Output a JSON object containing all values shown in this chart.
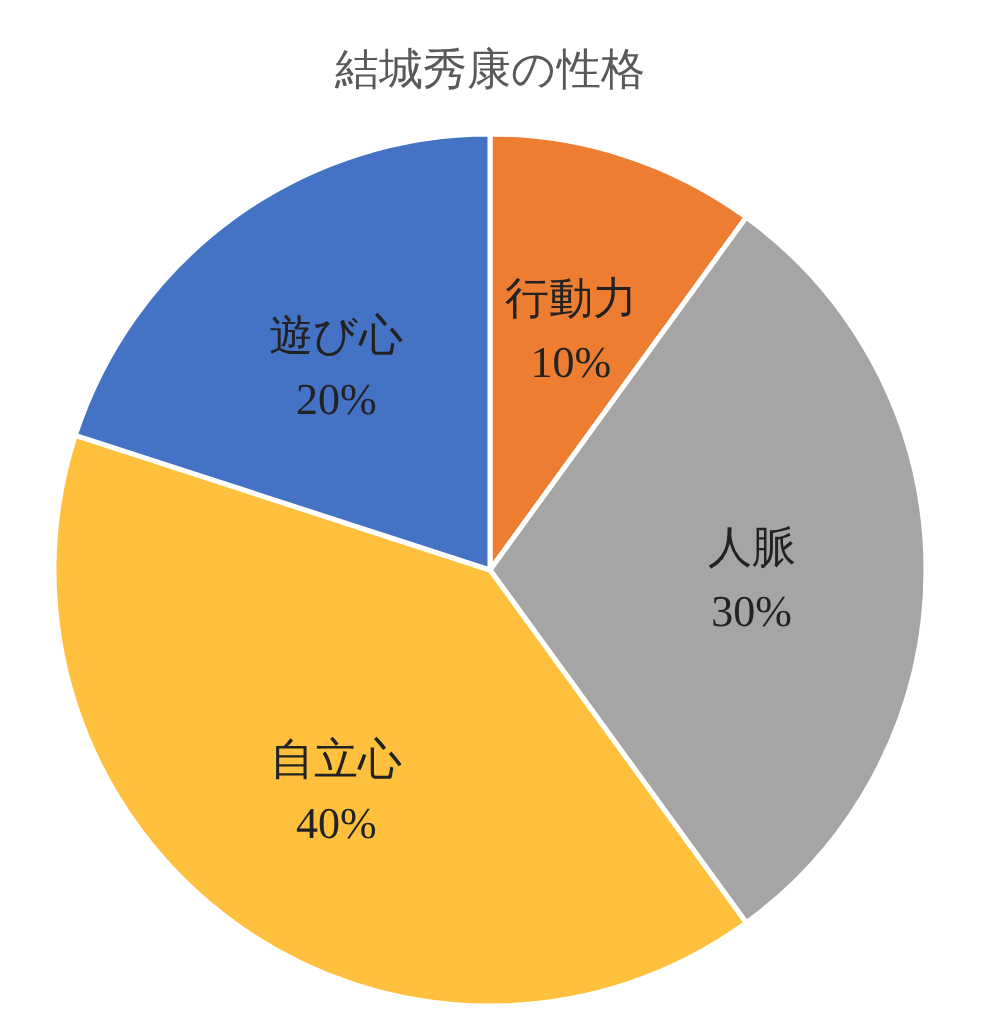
{
  "chart_data": {
    "type": "pie",
    "title": "結城秀康の性格",
    "categories": [
      "行動力",
      "人脈",
      "自立心",
      "遊び心"
    ],
    "values": [
      10,
      30,
      40,
      20
    ],
    "value_labels": [
      "10%",
      "30%",
      "40%",
      "20%"
    ],
    "colors": [
      "#ed7d31",
      "#a5a5a5",
      "#ffc03d",
      "#4472c4"
    ]
  }
}
